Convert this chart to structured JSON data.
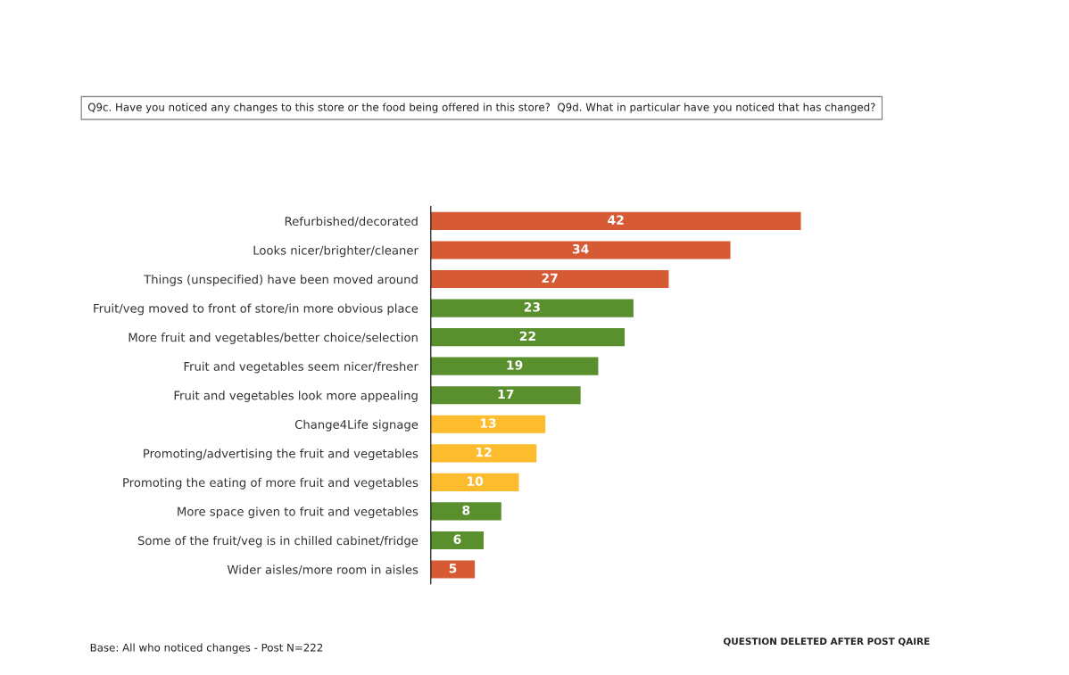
{
  "chart_data": {
    "type": "bar",
    "orientation": "horizontal",
    "title": "Q9c. Have you noticed any changes to this store or the food being offered in this store?  Q9d. What in particular have you noticed that has changed?",
    "categories": [
      "Refurbished/decorated",
      "Looks nicer/brighter/cleaner",
      "Things (unspecified) have been moved around",
      "Fruit/veg moved to front of store/in more obvious place",
      "More fruit and vegetables/better choice/selection",
      "Fruit and vegetables seem nicer/fresher",
      "Fruit and vegetables look more appealing",
      "Change4Life signage",
      "Promoting/advertising the fruit and vegetables",
      "Promoting the eating of more fruit and vegetables",
      "More space given to fruit and vegetables",
      "Some of the fruit/veg is in chilled cabinet/fridge",
      "Wider aisles/more room in aisles"
    ],
    "values": [
      42,
      34,
      27,
      23,
      22,
      19,
      17,
      13,
      12,
      10,
      8,
      6,
      5
    ],
    "colors": [
      "#d65b35",
      "#d65b35",
      "#d65b35",
      "#5a8f2e",
      "#5a8f2e",
      "#5a8f2e",
      "#5a8f2e",
      "#fcbc2e",
      "#fcbc2e",
      "#fcbc2e",
      "#5a8f2e",
      "#5a8f2e",
      "#d65b35"
    ],
    "data_labels": true,
    "tick_labels": "y",
    "grid": false,
    "annotations": [
      "Base: All who noticed changes - Post N=222",
      "QUESTION DELETED AFTER POST QAIRE"
    ]
  }
}
